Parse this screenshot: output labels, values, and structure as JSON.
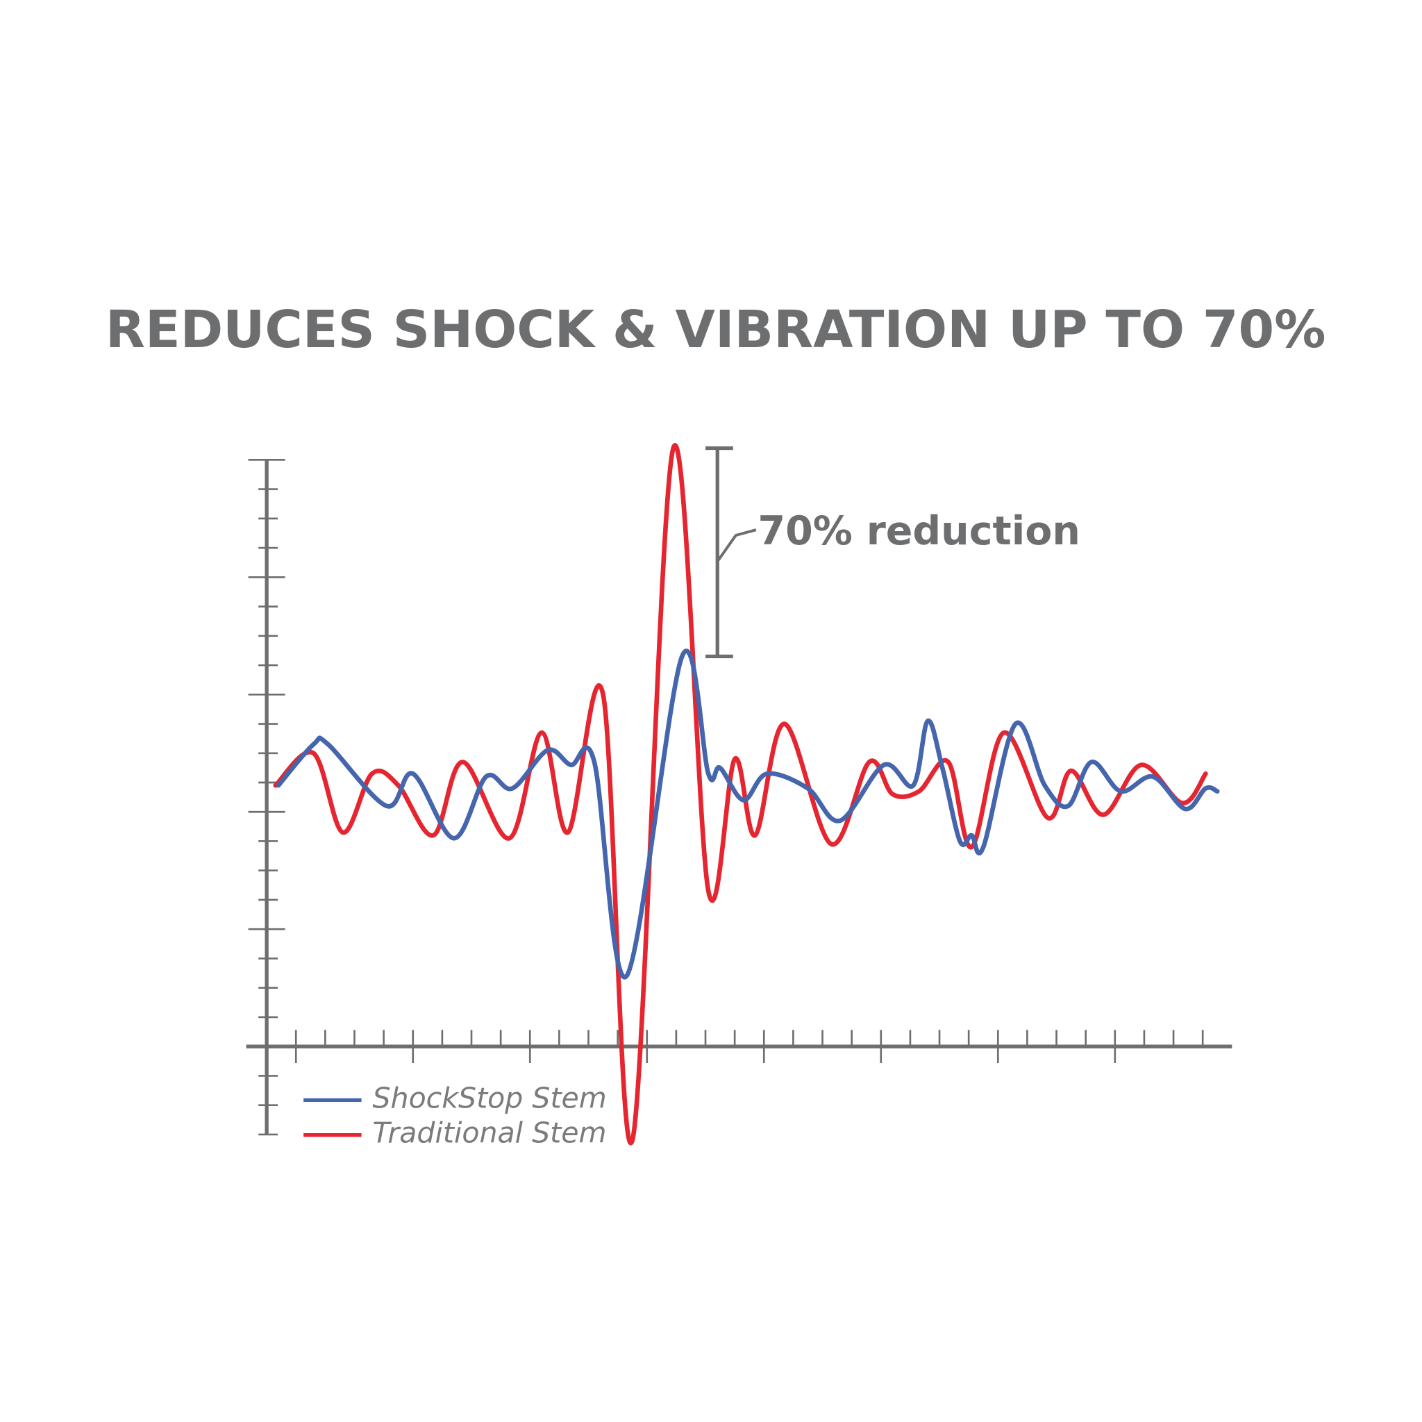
{
  "chart_data": {
    "type": "line",
    "title": "REDUCES SHOCK & VIBRATION UP TO 70%",
    "annotations": [
      {
        "text": "70% reduction"
      }
    ],
    "xlim": [
      -0.7,
      33
    ],
    "ylim": [
      -3,
      20
    ],
    "xticks": [
      1,
      2,
      3,
      4,
      5,
      6,
      7,
      8,
      9,
      10,
      11,
      12,
      13,
      14,
      15,
      16,
      17,
      18,
      19,
      20,
      21,
      22,
      23,
      24,
      25,
      26,
      27,
      28,
      29,
      30,
      31,
      32
    ],
    "yticks": [
      -3,
      -2,
      -1,
      0,
      1,
      2,
      3,
      4,
      5,
      6,
      7,
      8,
      9,
      10,
      11,
      12,
      13,
      14,
      15,
      16,
      17,
      18,
      19,
      20
    ],
    "grid": false,
    "axis_color": "#6d6e70",
    "series": [
      {
        "name": "ShockStop Stem",
        "color": "#4565ad",
        "x": [
          0.4,
          1.6,
          2.1,
          4.1,
          5.0,
          6.4,
          7.5,
          8.4,
          9.6,
          10.4,
          11.2,
          12.3,
          14.2,
          15.1,
          15.5,
          16.3,
          17.1,
          18.5,
          19.6,
          21.1,
          22.1,
          22.6,
          23.1,
          23.7,
          24.1,
          24.5,
          25.6,
          26.6,
          27.4,
          28.2,
          29.2,
          30.3,
          31.4,
          32.1,
          32.5
        ],
        "values": [
          8.9,
          10.3,
          10.3,
          8.2,
          9.3,
          7.1,
          9.2,
          8.8,
          10.1,
          9.6,
          9.7,
          2.4,
          13.3,
          9.3,
          9.5,
          8.4,
          9.3,
          8.8,
          7.7,
          9.6,
          8.9,
          11.1,
          9.5,
          7.0,
          7.2,
          6.8,
          11.0,
          8.9,
          8.2,
          9.7,
          8.7,
          9.2,
          8.1,
          8.8,
          8.7
        ]
      },
      {
        "name": "Traditional Stem",
        "color": "#e52630",
        "x": [
          0.3,
          1.6,
          2.6,
          3.6,
          4.5,
          5.7,
          6.7,
          8.3,
          9.4,
          10.3,
          11.5,
          12.5,
          13.9,
          15.1,
          16.0,
          16.7,
          17.7,
          19.3,
          20.6,
          21.4,
          22.3,
          23.3,
          24.1,
          25.2,
          26.7,
          27.5,
          28.6,
          29.9,
          31.3,
          32.1
        ],
        "values": [
          8.9,
          10.0,
          7.3,
          9.3,
          8.9,
          7.2,
          9.7,
          7.1,
          10.7,
          7.3,
          12.0,
          -3.2,
          20.4,
          5.3,
          9.8,
          7.2,
          11.0,
          6.9,
          9.7,
          8.6,
          8.7,
          9.7,
          6.8,
          10.7,
          7.8,
          9.4,
          7.9,
          9.6,
          8.3,
          9.3
        ]
      }
    ]
  }
}
